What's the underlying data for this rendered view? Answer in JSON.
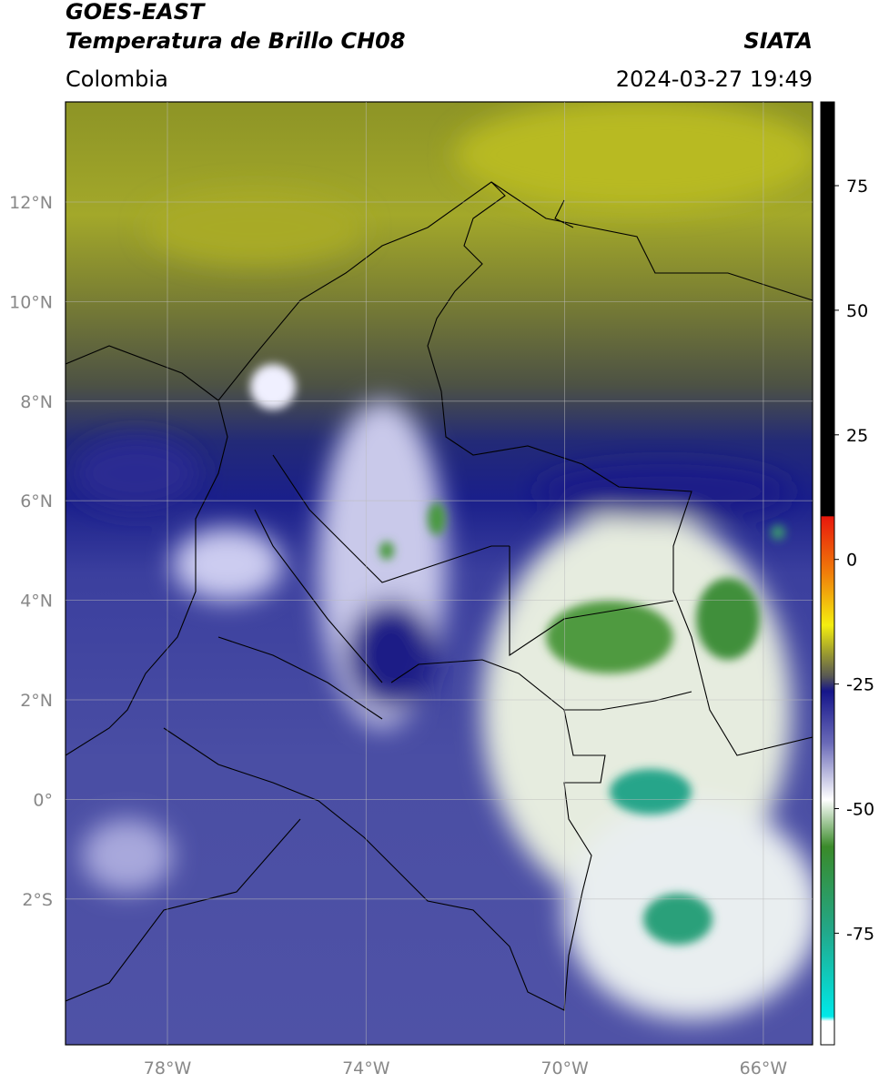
{
  "header": {
    "title_line1": "GOES-EAST",
    "title_line2": "Temperatura de Brillo CH08",
    "region": "Colombia",
    "source": "SIATA",
    "timestamp": "2024-03-27 19:49"
  },
  "map": {
    "lat_ticks": [
      "12°N",
      "10°N",
      "8°N",
      "6°N",
      "4°N",
      "2°N",
      "0°",
      "2°S"
    ],
    "lon_ticks": [
      "78°W",
      "74°W",
      "70°W",
      "66°W"
    ]
  },
  "colorbar": {
    "ticks": [
      75,
      50,
      25,
      0,
      -25,
      -50,
      -75
    ]
  }
}
